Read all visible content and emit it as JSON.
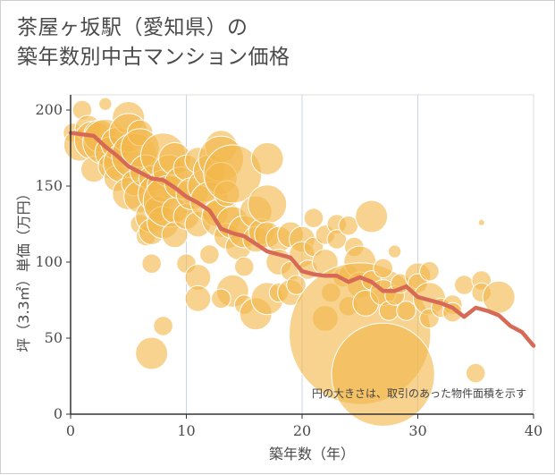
{
  "chart_data": {
    "type": "scatter",
    "title_line1": "茶屋ヶ坂駅（愛知県）の",
    "title_line2": "築年数別中古マンション価格",
    "xlabel": "築年数（年）",
    "ylabel": "坪（3.3㎡）単価（万円）",
    "annotation": "円の大きさは、取引のあった物件面積を示す",
    "xlim": [
      0,
      40
    ],
    "ylim": [
      0,
      210
    ],
    "xticks": [
      0,
      10,
      20,
      30,
      40
    ],
    "yticks": [
      0,
      50,
      100,
      150,
      200
    ],
    "grid": true,
    "colors": {
      "bubble": "#f2b84b",
      "trend": "#d66a57",
      "grid": "#c8d4e6",
      "axis": "#333333"
    },
    "trend_line": {
      "x": [
        0,
        1,
        2,
        3,
        4,
        5,
        6,
        7,
        8,
        9,
        10,
        11,
        12,
        13,
        14,
        15,
        16,
        17,
        18,
        19,
        20,
        21,
        22,
        23,
        24,
        25,
        26,
        27,
        28,
        29,
        30,
        31,
        32,
        33,
        34,
        35,
        36,
        37,
        38,
        39,
        40
      ],
      "y": [
        185,
        184,
        183,
        176,
        170,
        163,
        159,
        155,
        154,
        149,
        143,
        139,
        134,
        122,
        119,
        117,
        112,
        107,
        105,
        103,
        94,
        92,
        91,
        91,
        87,
        90,
        87,
        81,
        81,
        84,
        77,
        75,
        73,
        70,
        64,
        70,
        68,
        65,
        58,
        54,
        45
      ]
    },
    "points": [
      {
        "x": 0.2,
        "y": 185,
        "s": 3
      },
      {
        "x": 0.8,
        "y": 177,
        "s": 5
      },
      {
        "x": 1.0,
        "y": 200,
        "s": 3
      },
      {
        "x": 1.5,
        "y": 188,
        "s": 4
      },
      {
        "x": 2.0,
        "y": 180,
        "s": 6
      },
      {
        "x": 2.0,
        "y": 161,
        "s": 4
      },
      {
        "x": 2.5,
        "y": 183,
        "s": 5
      },
      {
        "x": 3.0,
        "y": 179,
        "s": 7
      },
      {
        "x": 3.0,
        "y": 204,
        "s": 2
      },
      {
        "x": 3.5,
        "y": 172,
        "s": 5
      },
      {
        "x": 3.5,
        "y": 163,
        "s": 4
      },
      {
        "x": 4.0,
        "y": 178,
        "s": 5
      },
      {
        "x": 4.0,
        "y": 155,
        "s": 4
      },
      {
        "x": 4.5,
        "y": 165,
        "s": 6
      },
      {
        "x": 5.0,
        "y": 195,
        "s": 5
      },
      {
        "x": 5.0,
        "y": 185,
        "s": 6
      },
      {
        "x": 5.0,
        "y": 145,
        "s": 5
      },
      {
        "x": 5.5,
        "y": 170,
        "s": 7
      },
      {
        "x": 5.5,
        "y": 152,
        "s": 4
      },
      {
        "x": 6.0,
        "y": 185,
        "s": 4
      },
      {
        "x": 6.0,
        "y": 175,
        "s": 6
      },
      {
        "x": 6.0,
        "y": 143,
        "s": 5
      },
      {
        "x": 6.0,
        "y": 125,
        "s": 3
      },
      {
        "x": 6.5,
        "y": 160,
        "s": 5
      },
      {
        "x": 6.5,
        "y": 117,
        "s": 3
      },
      {
        "x": 7.0,
        "y": 155,
        "s": 4
      },
      {
        "x": 7.0,
        "y": 130,
        "s": 5
      },
      {
        "x": 7.0,
        "y": 120,
        "s": 4
      },
      {
        "x": 7.0,
        "y": 99,
        "s": 3
      },
      {
        "x": 7.5,
        "y": 145,
        "s": 6
      },
      {
        "x": 7.5,
        "y": 135,
        "s": 4
      },
      {
        "x": 8.0,
        "y": 170,
        "s": 7
      },
      {
        "x": 8.0,
        "y": 150,
        "s": 5
      },
      {
        "x": 8.0,
        "y": 126,
        "s": 5
      },
      {
        "x": 8.5,
        "y": 160,
        "s": 5
      },
      {
        "x": 8.5,
        "y": 140,
        "s": 8
      },
      {
        "x": 9.0,
        "y": 168,
        "s": 5
      },
      {
        "x": 9.0,
        "y": 134,
        "s": 4
      },
      {
        "x": 9.0,
        "y": 118,
        "s": 4
      },
      {
        "x": 9.5,
        "y": 152,
        "s": 5
      },
      {
        "x": 10.0,
        "y": 162,
        "s": 4
      },
      {
        "x": 10.0,
        "y": 130,
        "s": 4
      },
      {
        "x": 10.0,
        "y": 99,
        "s": 3
      },
      {
        "x": 10.5,
        "y": 145,
        "s": 5
      },
      {
        "x": 11.0,
        "y": 167,
        "s": 4
      },
      {
        "x": 11.0,
        "y": 125,
        "s": 4
      },
      {
        "x": 11.0,
        "y": 90,
        "s": 4
      },
      {
        "x": 11.5,
        "y": 150,
        "s": 5
      },
      {
        "x": 12.0,
        "y": 160,
        "s": 5
      },
      {
        "x": 12.0,
        "y": 140,
        "s": 6
      },
      {
        "x": 12.0,
        "y": 105,
        "s": 3
      },
      {
        "x": 12.5,
        "y": 132,
        "s": 4
      },
      {
        "x": 13.0,
        "y": 176,
        "s": 5
      },
      {
        "x": 13.0,
        "y": 168,
        "s": 7
      },
      {
        "x": 13.0,
        "y": 155,
        "s": 5
      },
      {
        "x": 13.0,
        "y": 129,
        "s": 6
      },
      {
        "x": 13.5,
        "y": 145,
        "s": 4
      },
      {
        "x": 13.5,
        "y": 117,
        "s": 4
      },
      {
        "x": 14.0,
        "y": 158,
        "s": 9
      },
      {
        "x": 14.0,
        "y": 126,
        "s": 5
      },
      {
        "x": 14.0,
        "y": 81,
        "s": 5
      },
      {
        "x": 14.5,
        "y": 110,
        "s": 4
      },
      {
        "x": 15.0,
        "y": 120,
        "s": 5
      },
      {
        "x": 15.0,
        "y": 97,
        "s": 3
      },
      {
        "x": 15.0,
        "y": 72,
        "s": 3
      },
      {
        "x": 16.0,
        "y": 133,
        "s": 5
      },
      {
        "x": 16.0,
        "y": 115,
        "s": 4
      },
      {
        "x": 16.0,
        "y": 66,
        "s": 5
      },
      {
        "x": 16.5,
        "y": 120,
        "s": 4
      },
      {
        "x": 17.0,
        "y": 168,
        "s": 5
      },
      {
        "x": 17.0,
        "y": 138,
        "s": 6
      },
      {
        "x": 17.0,
        "y": 118,
        "s": 4
      },
      {
        "x": 17.0,
        "y": 76,
        "s": 5
      },
      {
        "x": 18.0,
        "y": 115,
        "s": 4
      },
      {
        "x": 18.0,
        "y": 100,
        "s": 4
      },
      {
        "x": 18.0,
        "y": 80,
        "s": 3
      },
      {
        "x": 19.0,
        "y": 118,
        "s": 4
      },
      {
        "x": 19.0,
        "y": 94,
        "s": 3
      },
      {
        "x": 19.0,
        "y": 80,
        "s": 4
      },
      {
        "x": 19.5,
        "y": 85,
        "s": 3
      },
      {
        "x": 20.0,
        "y": 115,
        "s": 4
      },
      {
        "x": 20.0,
        "y": 105,
        "s": 4
      },
      {
        "x": 20.5,
        "y": 95,
        "s": 3
      },
      {
        "x": 21.0,
        "y": 129,
        "s": 3
      },
      {
        "x": 21.0,
        "y": 110,
        "s": 3
      },
      {
        "x": 22.0,
        "y": 118,
        "s": 3
      },
      {
        "x": 22.0,
        "y": 100,
        "s": 4
      },
      {
        "x": 22.0,
        "y": 63,
        "s": 4
      },
      {
        "x": 22.5,
        "y": 80,
        "s": 3
      },
      {
        "x": 23.0,
        "y": 125,
        "s": 3
      },
      {
        "x": 23.0,
        "y": 115,
        "s": 3
      },
      {
        "x": 23.5,
        "y": 90,
        "s": 3
      },
      {
        "x": 24.0,
        "y": 124,
        "s": 3
      },
      {
        "x": 24.0,
        "y": 92,
        "s": 3
      },
      {
        "x": 24.0,
        "y": 71,
        "s": 3
      },
      {
        "x": 24.5,
        "y": 110,
        "s": 3
      },
      {
        "x": 25.0,
        "y": 100,
        "s": 5
      },
      {
        "x": 25.0,
        "y": 85,
        "s": 4
      },
      {
        "x": 25.0,
        "y": 53,
        "s": 22
      },
      {
        "x": 25.5,
        "y": 73,
        "s": 4
      },
      {
        "x": 26.0,
        "y": 130,
        "s": 5
      },
      {
        "x": 26.0,
        "y": 88,
        "s": 3
      },
      {
        "x": 27.0,
        "y": 96,
        "s": 3
      },
      {
        "x": 27.0,
        "y": 80,
        "s": 4
      },
      {
        "x": 27.0,
        "y": 26,
        "s": 16
      },
      {
        "x": 27.5,
        "y": 68,
        "s": 3
      },
      {
        "x": 28.0,
        "y": 107,
        "s": 2
      },
      {
        "x": 28.0,
        "y": 78,
        "s": 3
      },
      {
        "x": 28.5,
        "y": 86,
        "s": 3
      },
      {
        "x": 29.0,
        "y": 68,
        "s": 3
      },
      {
        "x": 30.0,
        "y": 91,
        "s": 4
      },
      {
        "x": 30.0,
        "y": 86,
        "s": 3
      },
      {
        "x": 31.0,
        "y": 94,
        "s": 3
      },
      {
        "x": 31.0,
        "y": 76,
        "s": 5
      },
      {
        "x": 31.0,
        "y": 63,
        "s": 3
      },
      {
        "x": 32.0,
        "y": 70,
        "s": 3
      },
      {
        "x": 33.0,
        "y": 72,
        "s": 3
      },
      {
        "x": 33.0,
        "y": 67,
        "s": 3
      },
      {
        "x": 34.0,
        "y": 85,
        "s": 3
      },
      {
        "x": 35.0,
        "y": 27,
        "s": 3
      },
      {
        "x": 35.5,
        "y": 126,
        "s": 1
      },
      {
        "x": 35.5,
        "y": 88,
        "s": 3
      },
      {
        "x": 35.5,
        "y": 80,
        "s": 3
      },
      {
        "x": 37.0,
        "y": 77,
        "s": 5
      },
      {
        "x": 8.0,
        "y": 58,
        "s": 3
      },
      {
        "x": 7.0,
        "y": 40,
        "s": 5
      },
      {
        "x": 11.0,
        "y": 76,
        "s": 4
      },
      {
        "x": 13.0,
        "y": 76,
        "s": 3
      }
    ]
  }
}
